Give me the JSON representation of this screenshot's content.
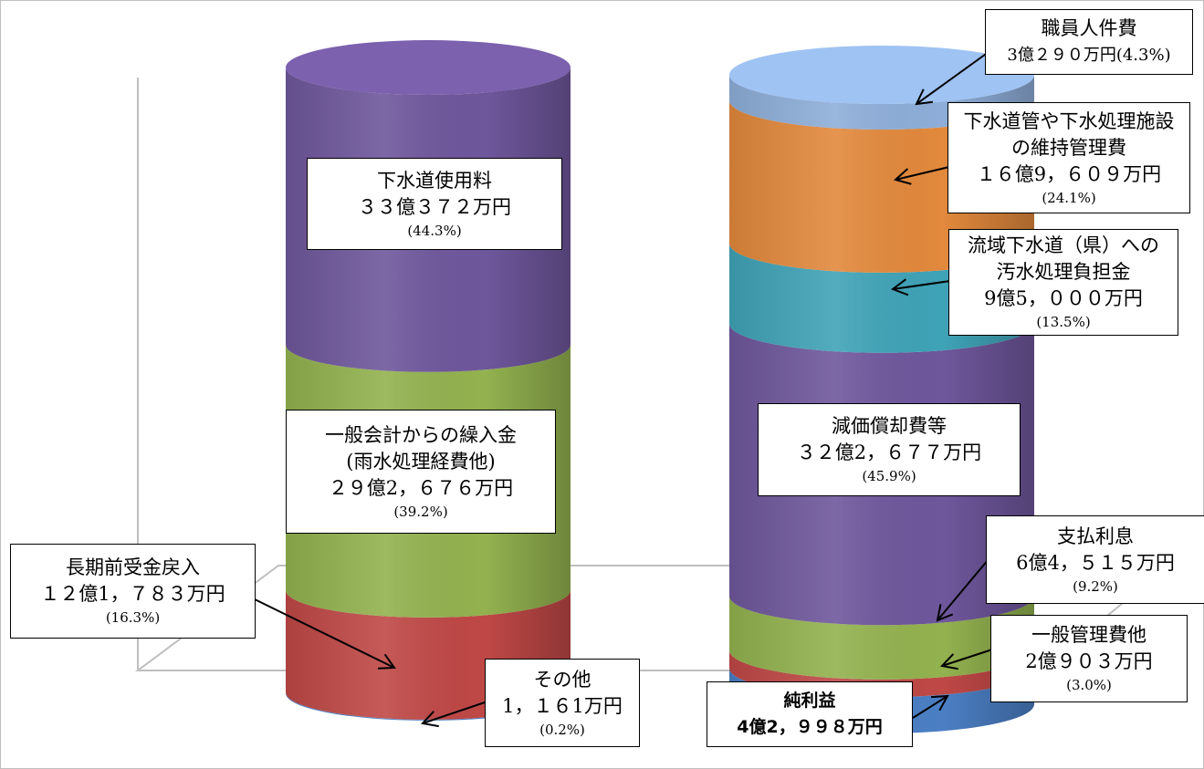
{
  "chart_data": {
    "type": "stacked-cylinder",
    "title": "",
    "unit": "万円",
    "columns": [
      {
        "name": "",
        "segments": [
          {
            "key": "other_income",
            "value": 1161,
            "percent": 0.2,
            "color": "#4b7fc4"
          },
          {
            "key": "long_term",
            "value": 121783,
            "percent": 16.3,
            "color": "#bf4846"
          },
          {
            "key": "general_transfer",
            "value": 292676,
            "percent": 39.2,
            "color": "#93b24f"
          },
          {
            "key": "sewer_fee",
            "value": 330372,
            "percent": 44.3,
            "color": "#6f579c"
          }
        ]
      },
      {
        "name": "",
        "segments": [
          {
            "key": "net_profit",
            "value": 42998,
            "color": "#4b7fc4"
          },
          {
            "key": "admin",
            "value": 20903,
            "percent": 3.0,
            "color": "#bf4846"
          },
          {
            "key": "interest",
            "value": 64515,
            "percent": 9.2,
            "color": "#93b24f"
          },
          {
            "key": "depreciation",
            "value": 322677,
            "percent": 45.9,
            "color": "#6f579c"
          },
          {
            "key": "basin",
            "value": 95000,
            "percent": 13.5,
            "color": "#3fa3b7"
          },
          {
            "key": "maintenance",
            "value": 169609,
            "percent": 24.1,
            "color": "#e2893c"
          },
          {
            "key": "personnel",
            "value": 30290,
            "percent": 4.3,
            "color": "#8eaed9"
          }
        ]
      }
    ]
  },
  "labels": {
    "sewer_fee": {
      "line1": "下水道使用料",
      "line2": "３３億３７２万円",
      "pct": "(44.3%)"
    },
    "general_transfer": {
      "line1": "一般会計からの繰入金",
      "line2": "(雨水処理経費他)",
      "line3": "２９億2，６７６万円",
      "pct": "(39.2%)"
    },
    "long_term": {
      "line1": "長期前受金戻入",
      "line2": "１２億1，７８３万円",
      "pct": "(16.3%)"
    },
    "other_income": {
      "line1": "その他",
      "line2": "1，１６1万円",
      "pct": "(0.2%)"
    },
    "personnel": {
      "line1": "職員人件費",
      "line2": "3億２９０万円(4.3%)"
    },
    "maintenance": {
      "line1": "下水道管や下水処理施設",
      "line2": "の維持管理費",
      "line3": "１６億9，６０９万円",
      "pct": "(24.1%)"
    },
    "basin": {
      "line1": "流域下水道（県）への",
      "line2": "汚水処理負担金",
      "line3": "9億5，０００万円",
      "pct": "(13.5%)"
    },
    "depreciation": {
      "line1": "減価償却費等",
      "line2": "３２億2，６７７万円",
      "pct": "(45.9%)"
    },
    "interest": {
      "line1": "支払利息",
      "line2": "6億4，５１５万円",
      "pct": "(9.2%)"
    },
    "admin": {
      "line1": "一般管理費他",
      "line2": "2億９０３万円",
      "pct": "(3.0%)"
    },
    "net_profit": {
      "line1": "純利益",
      "line2": "4億2，９９８万円"
    }
  }
}
